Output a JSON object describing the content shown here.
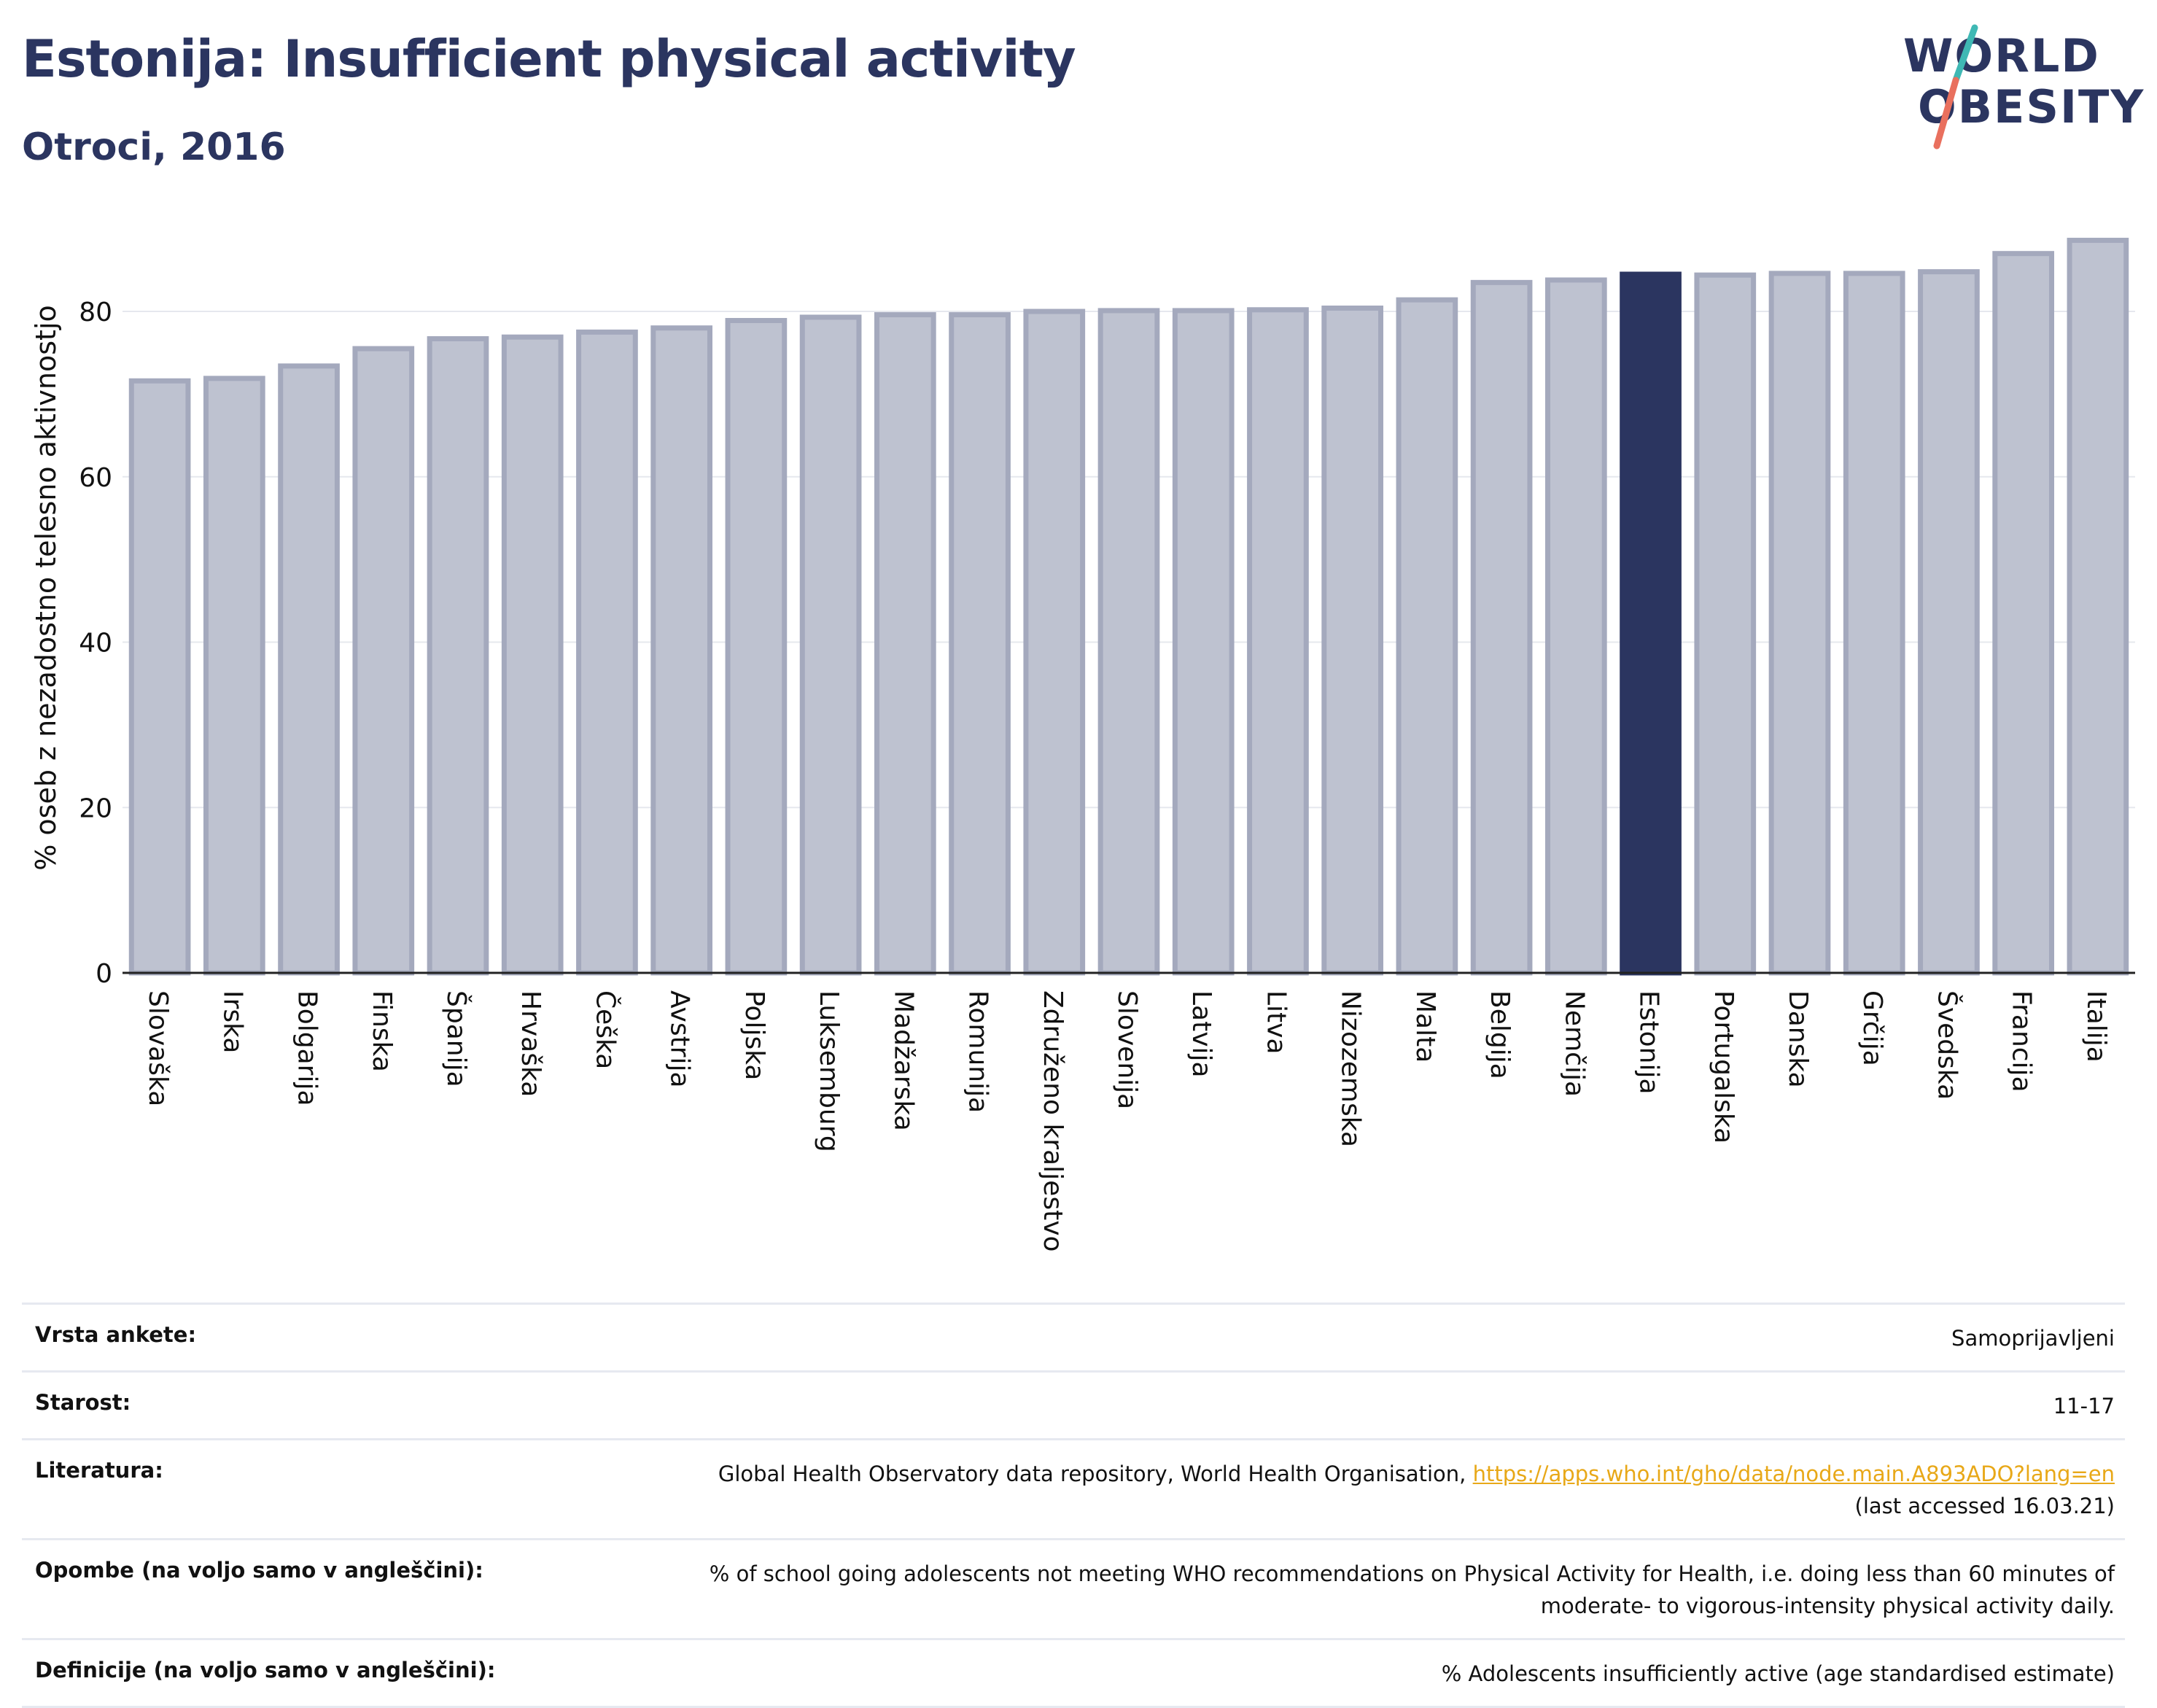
{
  "header": {
    "title": "Estonija: Insufficient physical activity",
    "subtitle": "Otroci, 2016"
  },
  "logo": {
    "line1": "WORLD",
    "line2": "OBESITY"
  },
  "colors": {
    "bar": "#bec2d0",
    "bar_stroke": "#a4a9bd",
    "highlight": "#2b3560",
    "title": "#2b3560",
    "link": "#e8a818",
    "slash_teal": "#3fb8b4",
    "slash_coral": "#e9705e"
  },
  "chart_data": {
    "type": "bar",
    "ylabel": "% oseb z nezadostno telesno aktivnostjo",
    "ylim": [
      0,
      89
    ],
    "yticks": [
      0,
      20,
      40,
      60,
      80
    ],
    "grid": true,
    "highlight": "Estonija",
    "categories": [
      "Slovaška",
      "Irska",
      "Bolgarija",
      "Finska",
      "Španija",
      "Hrvaška",
      "Češka",
      "Avstrija",
      "Poljska",
      "Luksemburg",
      "Madžarska",
      "Romunija",
      "Združeno kraljestvo",
      "Slovenija",
      "Latvija",
      "Litva",
      "Nizozemska",
      "Malta",
      "Belgija",
      "Nemčija",
      "Estonija",
      "Portugalska",
      "Danska",
      "Grčija",
      "Švedska",
      "Francija",
      "Italija"
    ],
    "values": [
      71.6,
      71.9,
      73.4,
      75.5,
      76.7,
      76.9,
      77.5,
      78.0,
      78.9,
      79.3,
      79.6,
      79.6,
      80.0,
      80.1,
      80.1,
      80.2,
      80.4,
      81.4,
      83.5,
      83.8,
      84.5,
      84.4,
      84.6,
      84.6,
      84.8,
      87.0,
      88.6
    ]
  },
  "info": {
    "survey_label": "Vrsta ankete:",
    "survey_value": "Samoprijavljeni",
    "age_label": "Starost:",
    "age_value": "11-17",
    "lit_label": "Literatura:",
    "lit_text": "Global Health Observatory data repository, World Health Organisation, ",
    "lit_link": "https://apps.who.int/gho/data/node.main.A893ADO?lang=en",
    "lit_accessed": "(last accessed 16.03.21)",
    "notes_label": "Opombe (na voljo samo v angleščini):",
    "notes_line1": "% of school going adolescents not meeting WHO recommendations on Physical Activity for Health, i.e. doing less than 60 minutes of",
    "notes_line2": "moderate- to vigorous-intensity physical activity daily.",
    "def_label": "Definicije (na voljo samo v angleščini):",
    "def_value": "% Adolescents insufficiently active (age standardised estimate)"
  }
}
